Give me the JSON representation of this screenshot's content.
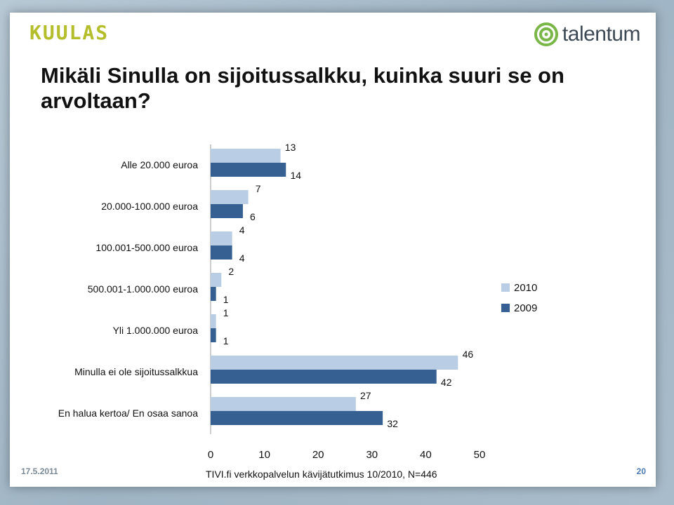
{
  "header": {
    "left_logo": "KUULAS",
    "right_logo": "talentum",
    "title": "Mikäli Sinulla on sijoitussalkku, kuinka suuri se on arvoltaan?"
  },
  "footer": {
    "date": "17.5.2011",
    "source": "TIVI.fi verkkopalvelun kävijätutkimus 10/2010, N=446",
    "page": "20"
  },
  "colors": {
    "series_2010": "#b9cde5",
    "series_2009": "#376092",
    "logo_green": "#b4be2a",
    "brand_green": "#7ab648"
  },
  "chart_data": {
    "type": "bar",
    "orientation": "horizontal",
    "categories": [
      "Alle 20.000 euroa",
      "20.000-100.000 euroa",
      "100.001-500.000 euroa",
      "500.001-1.000.000 euroa",
      "Yli 1.000.000 euroa",
      "Minulla ei ole sijoitussalkkua",
      "En halua kertoa/ En osaa sanoa"
    ],
    "series": [
      {
        "name": "2010",
        "values": [
          13,
          7,
          4,
          2,
          1,
          46,
          27
        ]
      },
      {
        "name": "2009",
        "values": [
          14,
          6,
          4,
          1,
          1,
          42,
          32
        ]
      }
    ],
    "xlim": [
      0,
      50
    ],
    "xticks": [
      0,
      10,
      20,
      30,
      40,
      50
    ],
    "grid": false,
    "legend_position": "right"
  }
}
